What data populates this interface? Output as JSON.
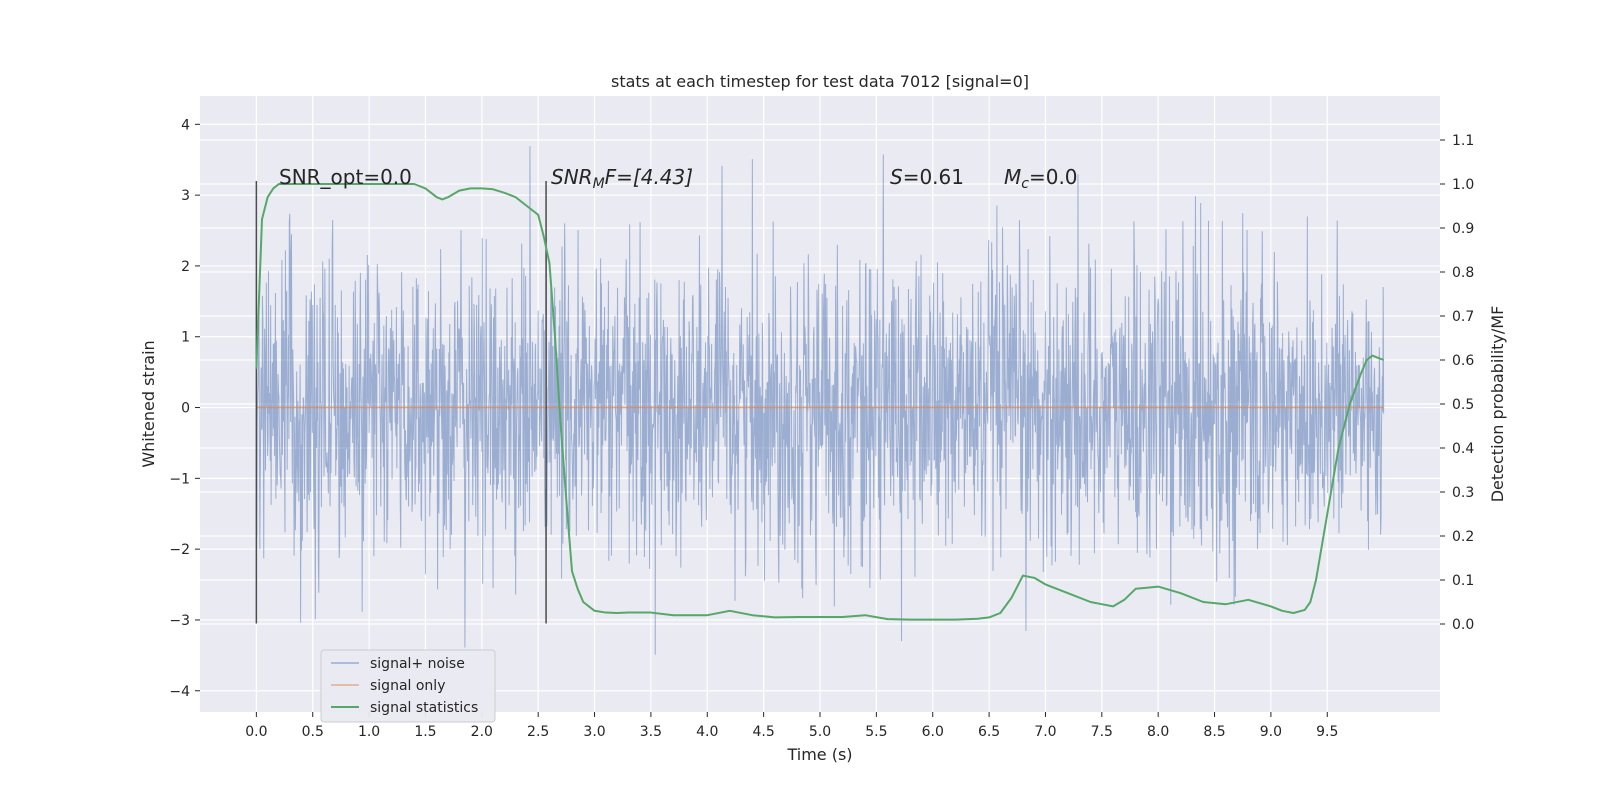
{
  "chart_data": {
    "type": "line",
    "title": "stats at each timestep for test data 7012 [signal=0]",
    "xlabel": "Time (s)",
    "ylabel_left": "Whitened strain",
    "ylabel_right": "Detection probability/MF",
    "xlim": [
      -0.5,
      10.5
    ],
    "ylim_left": [
      -4.3,
      4.4
    ],
    "ylim_right": [
      -0.2,
      1.2
    ],
    "x_ticks": [
      "0.0",
      "0.5",
      "1.0",
      "1.5",
      "2.0",
      "2.5",
      "3.0",
      "3.5",
      "4.0",
      "4.5",
      "5.0",
      "5.5",
      "6.0",
      "6.5",
      "7.0",
      "7.5",
      "8.0",
      "8.5",
      "9.0",
      "9.5"
    ],
    "y_ticks_left": [
      "−4",
      "−3",
      "−2",
      "−1",
      "0",
      "1",
      "2",
      "3",
      "4"
    ],
    "y_ticks_right": [
      "0.0",
      "0.1",
      "0.2",
      "0.3",
      "0.4",
      "0.5",
      "0.6",
      "0.7",
      "0.8",
      "0.9",
      "1.0",
      "1.1"
    ],
    "grid": true,
    "legend_position": "lower-left",
    "annotations": {
      "snr_opt": "SNR_opt=0.0",
      "snr_mf_label": "SNR",
      "snr_mf_sub": "M",
      "snr_mf_rest": "F=[4.43]",
      "s_label": "S",
      "s_value": "=0.61",
      "mc_label": "M",
      "mc_sub": "c",
      "mc_value": "=0.0"
    },
    "vlines_x": [
      0.0,
      2.57
    ],
    "series": [
      {
        "name": "signal+ noise",
        "axis": "left",
        "color": "#4c72b0",
        "description_range": "noise between approx -3.8 and 4.1 from t=0 to t=10"
      },
      {
        "name": "signal only",
        "axis": "left",
        "color": "#dd8452",
        "x": [
          0.0,
          10.0
        ],
        "y": [
          0.0,
          0.0
        ]
      },
      {
        "name": "signal statistics",
        "axis": "right",
        "color": "#55a868",
        "x": [
          0.0,
          0.05,
          0.1,
          0.15,
          0.2,
          0.3,
          0.5,
          0.8,
          1.0,
          1.2,
          1.4,
          1.5,
          1.6,
          1.65,
          1.7,
          1.8,
          1.9,
          2.0,
          2.1,
          2.2,
          2.3,
          2.4,
          2.5,
          2.55,
          2.6,
          2.65,
          2.7,
          2.75,
          2.8,
          2.85,
          2.9,
          2.95,
          3.0,
          3.1,
          3.2,
          3.3,
          3.5,
          3.7,
          3.9,
          4.0,
          4.2,
          4.4,
          4.6,
          4.8,
          5.0,
          5.2,
          5.4,
          5.6,
          5.8,
          6.0,
          6.2,
          6.4,
          6.5,
          6.6,
          6.7,
          6.8,
          6.9,
          7.0,
          7.2,
          7.4,
          7.5,
          7.6,
          7.7,
          7.8,
          8.0,
          8.2,
          8.4,
          8.6,
          8.8,
          9.0,
          9.1,
          9.2,
          9.3,
          9.35,
          9.4,
          9.5,
          9.6,
          9.7,
          9.8,
          9.85,
          9.9,
          9.95,
          10.0
        ],
        "y": [
          0.58,
          0.92,
          0.97,
          0.99,
          1.0,
          1.0,
          1.0,
          1.0,
          1.0,
          1.0,
          1.0,
          0.99,
          0.97,
          0.965,
          0.97,
          0.985,
          0.99,
          0.99,
          0.988,
          0.98,
          0.97,
          0.95,
          0.93,
          0.88,
          0.82,
          0.65,
          0.45,
          0.28,
          0.12,
          0.08,
          0.05,
          0.04,
          0.03,
          0.026,
          0.025,
          0.026,
          0.026,
          0.02,
          0.02,
          0.02,
          0.03,
          0.02,
          0.015,
          0.016,
          0.016,
          0.016,
          0.02,
          0.011,
          0.01,
          0.01,
          0.01,
          0.012,
          0.015,
          0.025,
          0.06,
          0.11,
          0.105,
          0.09,
          0.07,
          0.05,
          0.045,
          0.04,
          0.055,
          0.08,
          0.085,
          0.07,
          0.05,
          0.045,
          0.055,
          0.04,
          0.03,
          0.025,
          0.032,
          0.05,
          0.1,
          0.25,
          0.4,
          0.5,
          0.57,
          0.6,
          0.61,
          0.605,
          0.6
        ]
      }
    ]
  }
}
